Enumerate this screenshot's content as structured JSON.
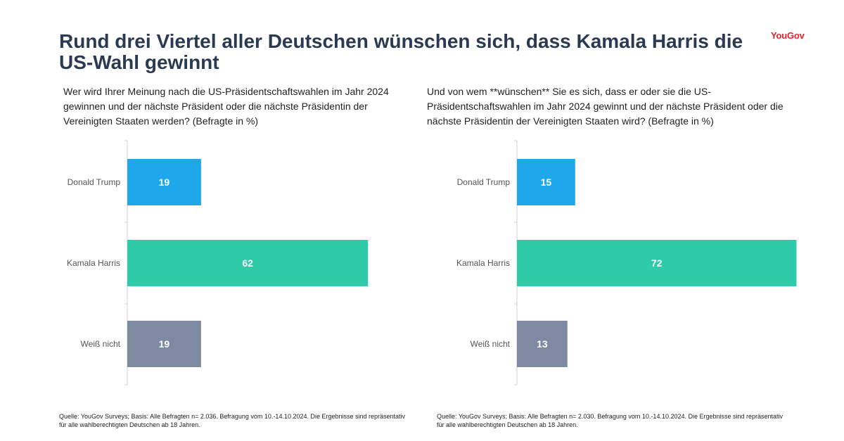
{
  "header": {
    "title": "Rund drei Viertel aller Deutschen wünschen sich, dass Kamala Harris die US-Wahl gewinnt",
    "brand": "YouGov"
  },
  "colors": {
    "trump": "#1fa7ec",
    "harris": "#2fcaa8",
    "unknown": "#7d8aa2",
    "axis": "#d0d0d0"
  },
  "panels": [
    {
      "question": "Wer wird Ihrer Meinung nach die US-Präsidentschaftswahlen im Jahr 2024 gewinnen und der nächste Präsident oder die nächste Präsidentin der Vereinigten Staaten werden? (Befragte in %)",
      "source": "Quelle: YouGov Surveys; Basis: Alle Befragten n= 2.036. Befragung vom 10.-14.10.2024. Die Ergebnisse sind repräsentativ für alle wahlberechtigten Deutschen ab 18 Jahren."
    },
    {
      "question": "Und von wem **wünschen** Sie es sich, dass er oder sie die US-Präsidentschaftswahlen im Jahr 2024 gewinnt und der nächste Präsident oder die nächste Präsidentin der Vereinigten Staaten wird? (Befragte in %)",
      "source": "Quelle: YouGov Surveys; Basis: Alle Befragten n= 2.030. Befragung vom 10.-14.10.2024. Die Ergebnisse sind repräsentativ für alle wahlberechtigten Deutschen ab 18 Jahren."
    }
  ],
  "chart_data": [
    {
      "type": "bar",
      "orientation": "horizontal",
      "categories": [
        "Donald Trump",
        "Kamala Harris",
        "Weiß nicht"
      ],
      "values": [
        19,
        62,
        19
      ],
      "colors": [
        "#1fa7ec",
        "#2fcaa8",
        "#7d8aa2"
      ],
      "xlim": [
        0,
        100
      ],
      "grid": false
    },
    {
      "type": "bar",
      "orientation": "horizontal",
      "categories": [
        "Donald Trump",
        "Kamala Harris",
        "Weiß nicht"
      ],
      "values": [
        15,
        72,
        13
      ],
      "colors": [
        "#1fa7ec",
        "#2fcaa8",
        "#7d8aa2"
      ],
      "xlim": [
        0,
        100
      ],
      "grid": false
    }
  ]
}
